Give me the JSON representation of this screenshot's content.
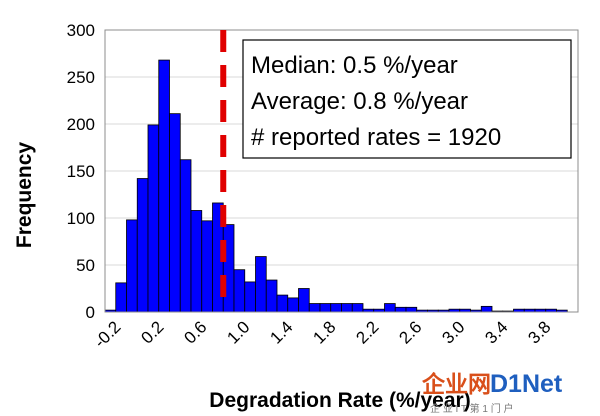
{
  "chart_data": {
    "type": "bar",
    "xlabel": "Degradation Rate (%/year)",
    "ylabel": "Frequency",
    "xlim": [
      -0.3,
      4.1
    ],
    "ylim": [
      0,
      300
    ],
    "bin_width": 0.1,
    "x_tick_values": [
      -0.2,
      0.2,
      0.6,
      1.0,
      1.4,
      1.8,
      2.2,
      2.6,
      3.0,
      3.4,
      3.8
    ],
    "x_tick_labels": [
      "-0.2",
      "0.2",
      "0.6",
      "1.0",
      "1.4",
      "1.8",
      "2.2",
      "2.6",
      "3.0",
      "3.4",
      "3.8"
    ],
    "y_ticks": [
      0,
      50,
      100,
      150,
      200,
      250,
      300
    ],
    "bar_color": "#0000ff",
    "bin_start": [
      -0.3,
      -0.2,
      -0.1,
      0.0,
      0.1,
      0.2,
      0.3,
      0.4,
      0.5,
      0.6,
      0.7,
      0.8,
      0.9,
      1.0,
      1.1,
      1.2,
      1.3,
      1.4,
      1.5,
      1.6,
      1.7,
      1.8,
      1.9,
      2.0,
      2.1,
      2.2,
      2.3,
      2.4,
      2.5,
      2.6,
      2.7,
      2.8,
      2.9,
      3.0,
      3.1,
      3.2,
      3.3,
      3.4,
      3.5,
      3.6,
      3.7,
      3.8,
      3.9,
      4.0
    ],
    "values": [
      2,
      31,
      98,
      142,
      199,
      268,
      211,
      162,
      108,
      97,
      116,
      93,
      45,
      32,
      59,
      34,
      18,
      15,
      25,
      9,
      9,
      9,
      9,
      9,
      3,
      3,
      9,
      5,
      5,
      2,
      2,
      2,
      3,
      3,
      2,
      6,
      1,
      1,
      3,
      3,
      3,
      3,
      2,
      0
    ],
    "reference_line": {
      "x": 0.8,
      "color": "#e00000",
      "style": "dashed"
    },
    "annotation_lines": [
      "Median: 0.5 %/year",
      "Average: 0.8 %/year",
      "# reported rates = 1920"
    ],
    "grid": "horizontal",
    "legend": "none"
  },
  "watermark": {
    "main_a": "企业网",
    "main_b": "D1Net",
    "sub": "企 业 I T 第 1 门 户"
  }
}
